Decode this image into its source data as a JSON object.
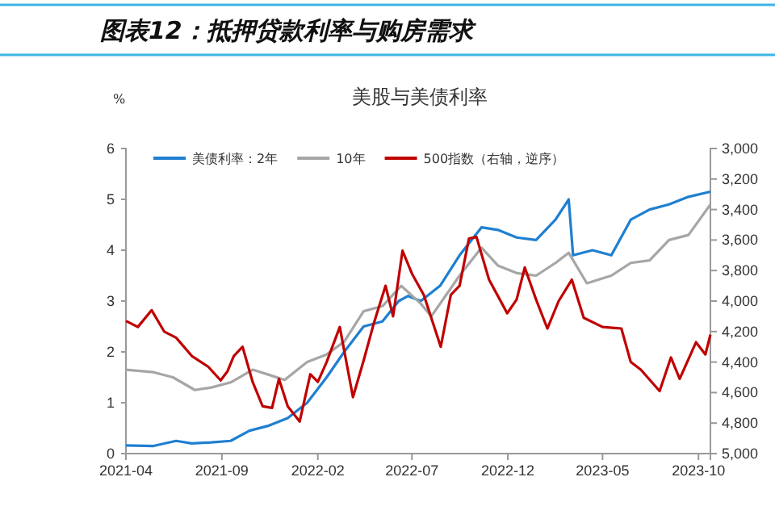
{
  "chart_data": {
    "type": "line",
    "title": "图表12：抵押贷款利率与购房需求",
    "subtitle": "美股与美债利率",
    "ylabel": "%",
    "xlim": [
      "2021-04-01",
      "2023-10-20"
    ],
    "xticks": [
      {
        "value": "2021-04-01",
        "label": "2021-04"
      },
      {
        "value": "2021-09-01",
        "label": "2021-09"
      },
      {
        "value": "2022-02-01",
        "label": "2022-02"
      },
      {
        "value": "2022-07-01",
        "label": "2022-07"
      },
      {
        "value": "2022-12-01",
        "label": "2022-12"
      },
      {
        "value": "2023-05-01",
        "label": "2023-05"
      },
      {
        "value": "2023-10-01",
        "label": "2023-10"
      }
    ],
    "ylim": [
      0,
      6
    ],
    "yticks": [
      0,
      1,
      2,
      3,
      4,
      5,
      6
    ],
    "y2lim": [
      5000,
      3000
    ],
    "y2ticks": [
      {
        "value": 3000,
        "label": "3,000"
      },
      {
        "value": 3200,
        "label": "3,200"
      },
      {
        "value": 3400,
        "label": "3,400"
      },
      {
        "value": 3600,
        "label": "3,600"
      },
      {
        "value": 3800,
        "label": "3,800"
      },
      {
        "value": 4000,
        "label": "4,000"
      },
      {
        "value": 4200,
        "label": "4,200"
      },
      {
        "value": 4400,
        "label": "4,400"
      },
      {
        "value": 4600,
        "label": "4,600"
      },
      {
        "value": 4800,
        "label": "4,800"
      },
      {
        "value": 5000,
        "label": "5,000"
      }
    ],
    "legend": "top",
    "grid": false,
    "line_style": "solid",
    "marker": "none",
    "series": [
      {
        "name": "美债利率：2年",
        "color": "#1f7fd0",
        "x": [
          "2021-04-01",
          "2021-05-15",
          "2021-06-20",
          "2021-07-15",
          "2021-08-15",
          "2021-09-15",
          "2021-10-15",
          "2021-11-15",
          "2021-12-15",
          "2022-01-15",
          "2022-02-15",
          "2022-03-15",
          "2022-04-15",
          "2022-05-15",
          "2022-06-10",
          "2022-06-25",
          "2022-07-15",
          "2022-08-15",
          "2022-09-15",
          "2022-10-20",
          "2022-11-15",
          "2022-12-15",
          "2023-01-15",
          "2023-02-15",
          "2023-03-08",
          "2023-03-15",
          "2023-04-15",
          "2023-05-15",
          "2023-06-15",
          "2023-07-15",
          "2023-08-15",
          "2023-09-15",
          "2023-10-20"
        ],
        "values": [
          0.16,
          0.15,
          0.25,
          0.2,
          0.22,
          0.25,
          0.45,
          0.55,
          0.7,
          1.0,
          1.5,
          2.0,
          2.5,
          2.6,
          3.0,
          3.1,
          3.0,
          3.3,
          3.9,
          4.45,
          4.4,
          4.25,
          4.2,
          4.6,
          5.0,
          3.9,
          4.0,
          3.9,
          4.6,
          4.8,
          4.9,
          5.05,
          5.15
        ]
      },
      {
        "name": "10年",
        "color": "#a6a6a6",
        "x": [
          "2021-04-01",
          "2021-05-15",
          "2021-06-15",
          "2021-07-20",
          "2021-08-15",
          "2021-09-15",
          "2021-10-20",
          "2021-11-15",
          "2021-12-10",
          "2022-01-15",
          "2022-02-15",
          "2022-03-15",
          "2022-04-15",
          "2022-05-15",
          "2022-06-14",
          "2022-07-15",
          "2022-08-01",
          "2022-09-15",
          "2022-10-20",
          "2022-11-15",
          "2022-12-15",
          "2023-01-15",
          "2023-02-15",
          "2023-03-08",
          "2023-04-06",
          "2023-05-15",
          "2023-06-15",
          "2023-07-15",
          "2023-08-15",
          "2023-09-15",
          "2023-10-20"
        ],
        "values": [
          1.65,
          1.6,
          1.5,
          1.25,
          1.3,
          1.4,
          1.65,
          1.55,
          1.45,
          1.8,
          1.95,
          2.2,
          2.8,
          2.9,
          3.3,
          2.95,
          2.7,
          3.5,
          4.05,
          3.7,
          3.55,
          3.5,
          3.75,
          3.95,
          3.35,
          3.5,
          3.75,
          3.8,
          4.2,
          4.3,
          4.9
        ]
      },
      {
        "name": "500指数（右轴，逆序）",
        "color": "#c00000",
        "axis": "y2",
        "x": [
          "2021-04-01",
          "2021-04-20",
          "2021-05-12",
          "2021-06-01",
          "2021-06-20",
          "2021-07-15",
          "2021-08-10",
          "2021-08-30",
          "2021-09-10",
          "2021-09-20",
          "2021-10-04",
          "2021-10-20",
          "2021-11-05",
          "2021-11-20",
          "2021-12-01",
          "2021-12-15",
          "2022-01-03",
          "2022-01-20",
          "2022-02-01",
          "2022-02-15",
          "2022-03-08",
          "2022-03-29",
          "2022-04-15",
          "2022-05-01",
          "2022-05-20",
          "2022-06-01",
          "2022-06-16",
          "2022-07-01",
          "2022-07-20",
          "2022-08-16",
          "2022-09-01",
          "2022-09-15",
          "2022-09-30",
          "2022-10-12",
          "2022-11-01",
          "2022-11-30",
          "2022-12-15",
          "2022-12-28",
          "2023-01-15",
          "2023-02-02",
          "2023-02-20",
          "2023-03-13",
          "2023-04-01",
          "2023-05-01",
          "2023-05-31",
          "2023-06-15",
          "2023-07-01",
          "2023-07-31",
          "2023-08-18",
          "2023-09-01",
          "2023-09-27",
          "2023-10-12",
          "2023-10-20"
        ],
        "values": [
          4130,
          4170,
          4060,
          4200,
          4240,
          4360,
          4430,
          4520,
          4460,
          4360,
          4300,
          4530,
          4690,
          4700,
          4510,
          4690,
          4790,
          4480,
          4530,
          4400,
          4170,
          4630,
          4390,
          4150,
          3900,
          4100,
          3670,
          3820,
          3960,
          4300,
          3960,
          3900,
          3590,
          3580,
          3860,
          4080,
          3990,
          3780,
          3990,
          4180,
          4000,
          3860,
          4110,
          4170,
          4180,
          4400,
          4450,
          4590,
          4370,
          4510,
          4270,
          4350,
          4220
        ]
      }
    ]
  }
}
